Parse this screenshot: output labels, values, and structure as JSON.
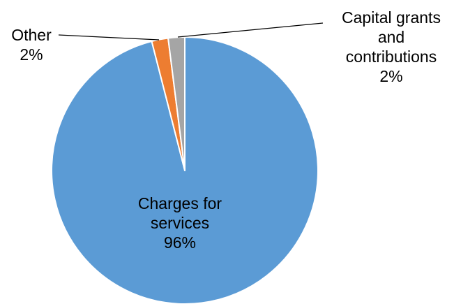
{
  "chart_data": {
    "type": "pie",
    "title": "",
    "start_angle_deg": 0,
    "direction": "clockwise",
    "slices": [
      {
        "label_lines": [
          "Charges for",
          "services"
        ],
        "percent_label": "96%",
        "value": 96,
        "color": "#5B9BD5"
      },
      {
        "label_lines": [
          "Other"
        ],
        "percent_label": "2%",
        "value": 2,
        "color": "#ED7D31"
      },
      {
        "label_lines": [
          "Capital grants",
          "and",
          "contributions"
        ],
        "percent_label": "2%",
        "value": 2,
        "color": "#A5A5A5"
      }
    ],
    "legend": "none",
    "label_placement": [
      "inside",
      "outside-left",
      "outside-right"
    ],
    "leader_line_color": "#000000",
    "slice_border_color": "#FFFFFF"
  }
}
